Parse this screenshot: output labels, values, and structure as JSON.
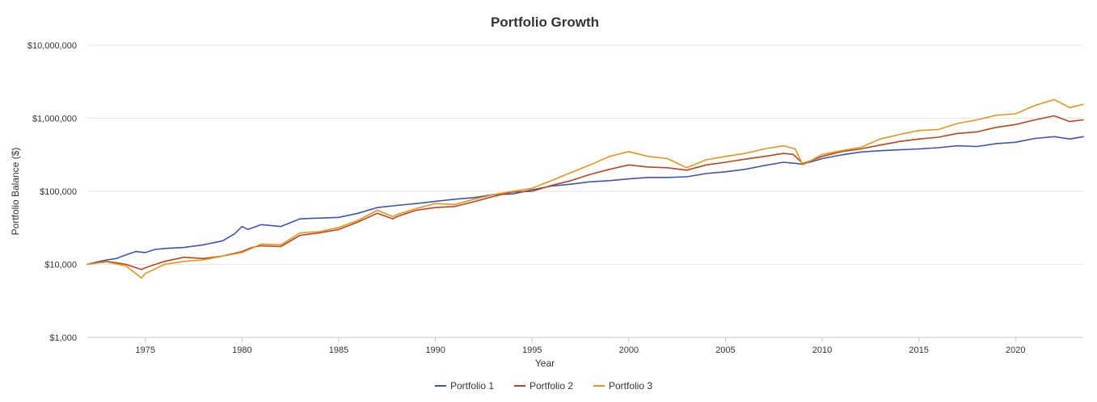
{
  "chart_data": {
    "type": "line",
    "title": "Portfolio Growth",
    "xlabel": "Year",
    "ylabel": "Portfolio Balance ($)",
    "yscale": "log",
    "ylim": [
      1000,
      10000000
    ],
    "xlim": [
      1972,
      2023.5
    ],
    "grid": true,
    "legend_position": "bottom-center",
    "y_ticks": [
      {
        "value": 1000,
        "label": "$1,000"
      },
      {
        "value": 10000,
        "label": "$10,000"
      },
      {
        "value": 100000,
        "label": "$100,000"
      },
      {
        "value": 1000000,
        "label": "$1,000,000"
      },
      {
        "value": 10000000,
        "label": "$10,000,000"
      }
    ],
    "x_ticks": [
      {
        "value": 1975,
        "label": "1975"
      },
      {
        "value": 1980,
        "label": "1980"
      },
      {
        "value": 1985,
        "label": "1985"
      },
      {
        "value": 1990,
        "label": "1990"
      },
      {
        "value": 1995,
        "label": "1995"
      },
      {
        "value": 2000,
        "label": "2000"
      },
      {
        "value": 2005,
        "label": "2005"
      },
      {
        "value": 2010,
        "label": "2010"
      },
      {
        "value": 2015,
        "label": "2015"
      },
      {
        "value": 2020,
        "label": "2020"
      }
    ],
    "series": [
      {
        "name": "Portfolio 1",
        "color": "#3c55b8",
        "points": [
          [
            1972.0,
            10000
          ],
          [
            1972.5,
            10800
          ],
          [
            1973.0,
            11500
          ],
          [
            1973.5,
            12000
          ],
          [
            1974.0,
            13500
          ],
          [
            1974.5,
            15000
          ],
          [
            1975.0,
            14500
          ],
          [
            1975.5,
            16000
          ],
          [
            1976.0,
            16500
          ],
          [
            1977.0,
            17000
          ],
          [
            1978.0,
            18500
          ],
          [
            1979.0,
            21000
          ],
          [
            1979.6,
            26000
          ],
          [
            1980.0,
            33000
          ],
          [
            1980.3,
            30000
          ],
          [
            1981.0,
            35000
          ],
          [
            1982.0,
            33000
          ],
          [
            1983.0,
            42000
          ],
          [
            1984.0,
            43000
          ],
          [
            1985.0,
            44000
          ],
          [
            1986.0,
            50000
          ],
          [
            1987.0,
            60000
          ],
          [
            1988.0,
            64000
          ],
          [
            1989.0,
            68000
          ],
          [
            1990.0,
            73000
          ],
          [
            1991.0,
            78000
          ],
          [
            1992.0,
            82000
          ],
          [
            1993.0,
            90000
          ],
          [
            1994.0,
            92000
          ],
          [
            1995.0,
            105000
          ],
          [
            1996.0,
            118000
          ],
          [
            1997.0,
            125000
          ],
          [
            1998.0,
            135000
          ],
          [
            1999.0,
            140000
          ],
          [
            2000.0,
            148000
          ],
          [
            2001.0,
            155000
          ],
          [
            2002.0,
            155000
          ],
          [
            2003.0,
            158000
          ],
          [
            2004.0,
            175000
          ],
          [
            2005.0,
            185000
          ],
          [
            2006.0,
            200000
          ],
          [
            2007.0,
            225000
          ],
          [
            2008.0,
            250000
          ],
          [
            2008.7,
            240000
          ],
          [
            2009.0,
            235000
          ],
          [
            2010.0,
            280000
          ],
          [
            2011.0,
            315000
          ],
          [
            2012.0,
            345000
          ],
          [
            2013.0,
            360000
          ],
          [
            2014.0,
            370000
          ],
          [
            2015.0,
            380000
          ],
          [
            2016.0,
            395000
          ],
          [
            2017.0,
            420000
          ],
          [
            2018.0,
            410000
          ],
          [
            2019.0,
            450000
          ],
          [
            2020.0,
            470000
          ],
          [
            2021.0,
            530000
          ],
          [
            2022.0,
            560000
          ],
          [
            2022.8,
            520000
          ],
          [
            2023.5,
            560000
          ]
        ]
      },
      {
        "name": "Portfolio 2",
        "color": "#c0441b",
        "points": [
          [
            1972.0,
            10000
          ],
          [
            1973.0,
            11000
          ],
          [
            1973.5,
            10500
          ],
          [
            1974.0,
            10000
          ],
          [
            1974.8,
            8500
          ],
          [
            1975.0,
            9000
          ],
          [
            1976.0,
            11000
          ],
          [
            1977.0,
            12500
          ],
          [
            1978.0,
            12000
          ],
          [
            1979.0,
            13000
          ],
          [
            1980.0,
            15000
          ],
          [
            1980.5,
            17000
          ],
          [
            1981.0,
            18000
          ],
          [
            1982.0,
            17500
          ],
          [
            1983.0,
            25000
          ],
          [
            1984.0,
            27000
          ],
          [
            1985.0,
            30000
          ],
          [
            1986.0,
            38000
          ],
          [
            1987.0,
            50000
          ],
          [
            1987.8,
            42000
          ],
          [
            1988.0,
            45000
          ],
          [
            1989.0,
            55000
          ],
          [
            1990.0,
            60000
          ],
          [
            1991.0,
            62000
          ],
          [
            1992.0,
            72000
          ],
          [
            1993.0,
            85000
          ],
          [
            1994.0,
            98000
          ],
          [
            1995.0,
            100000
          ],
          [
            1996.0,
            120000
          ],
          [
            1997.0,
            140000
          ],
          [
            1998.0,
            170000
          ],
          [
            1999.0,
            200000
          ],
          [
            2000.0,
            230000
          ],
          [
            2001.0,
            215000
          ],
          [
            2002.0,
            210000
          ],
          [
            2003.0,
            195000
          ],
          [
            2004.0,
            230000
          ],
          [
            2005.0,
            250000
          ],
          [
            2006.0,
            275000
          ],
          [
            2007.0,
            300000
          ],
          [
            2008.0,
            330000
          ],
          [
            2008.5,
            320000
          ],
          [
            2009.0,
            240000
          ],
          [
            2010.0,
            300000
          ],
          [
            2011.0,
            350000
          ],
          [
            2012.0,
            380000
          ],
          [
            2013.0,
            430000
          ],
          [
            2014.0,
            480000
          ],
          [
            2015.0,
            520000
          ],
          [
            2016.0,
            550000
          ],
          [
            2017.0,
            620000
          ],
          [
            2018.0,
            650000
          ],
          [
            2019.0,
            750000
          ],
          [
            2020.0,
            820000
          ],
          [
            2021.0,
            950000
          ],
          [
            2022.0,
            1080000
          ],
          [
            2022.8,
            900000
          ],
          [
            2023.5,
            950000
          ]
        ]
      },
      {
        "name": "Portfolio 3",
        "color": "#e8941a",
        "points": [
          [
            1972.0,
            10000
          ],
          [
            1973.0,
            10800
          ],
          [
            1974.0,
            9500
          ],
          [
            1974.8,
            6500
          ],
          [
            1975.0,
            7500
          ],
          [
            1976.0,
            10000
          ],
          [
            1977.0,
            11000
          ],
          [
            1978.0,
            11500
          ],
          [
            1979.0,
            13000
          ],
          [
            1980.0,
            14500
          ],
          [
            1981.0,
            19000
          ],
          [
            1982.0,
            18500
          ],
          [
            1983.0,
            27000
          ],
          [
            1984.0,
            28000
          ],
          [
            1985.0,
            32000
          ],
          [
            1986.0,
            40000
          ],
          [
            1987.0,
            55000
          ],
          [
            1987.8,
            45000
          ],
          [
            1988.0,
            48000
          ],
          [
            1989.0,
            58000
          ],
          [
            1990.0,
            68000
          ],
          [
            1991.0,
            66000
          ],
          [
            1992.0,
            78000
          ],
          [
            1993.0,
            90000
          ],
          [
            1994.0,
            100000
          ],
          [
            1995.0,
            110000
          ],
          [
            1996.0,
            140000
          ],
          [
            1997.0,
            180000
          ],
          [
            1998.0,
            230000
          ],
          [
            1999.0,
            300000
          ],
          [
            2000.0,
            350000
          ],
          [
            2001.0,
            300000
          ],
          [
            2002.0,
            280000
          ],
          [
            2003.0,
            210000
          ],
          [
            2004.0,
            270000
          ],
          [
            2005.0,
            300000
          ],
          [
            2006.0,
            330000
          ],
          [
            2007.0,
            380000
          ],
          [
            2008.0,
            420000
          ],
          [
            2008.6,
            380000
          ],
          [
            2009.0,
            230000
          ],
          [
            2010.0,
            320000
          ],
          [
            2011.0,
            360000
          ],
          [
            2012.0,
            400000
          ],
          [
            2013.0,
            520000
          ],
          [
            2014.0,
            600000
          ],
          [
            2015.0,
            680000
          ],
          [
            2016.0,
            700000
          ],
          [
            2017.0,
            850000
          ],
          [
            2018.0,
            950000
          ],
          [
            2019.0,
            1100000
          ],
          [
            2020.0,
            1150000
          ],
          [
            2021.0,
            1500000
          ],
          [
            2022.0,
            1800000
          ],
          [
            2022.8,
            1400000
          ],
          [
            2023.5,
            1550000
          ]
        ]
      }
    ]
  }
}
